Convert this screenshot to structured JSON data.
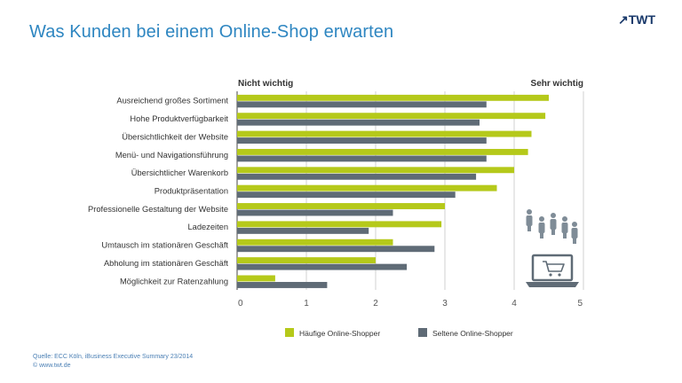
{
  "title": "Was Kunden bei einem Online-Shop erwarten",
  "logo": {
    "arrow": "↗",
    "text": "TWT"
  },
  "footer": {
    "source": "Quelle: ECC Köln, iBusiness Executive Summary 23/2014",
    "copyright": "© www.twt.de"
  },
  "icons": [
    "people-icon",
    "laptop-cart-icon"
  ],
  "chart_data": {
    "type": "bar",
    "orientation": "horizontal",
    "categories": [
      "Ausreichend großes Sortiment",
      "Hohe Produktverfügbarkeit",
      "Übersichtlichkeit der Website",
      "Menü- und Navigationsführung",
      "Übersichtlicher Warenkorb",
      "Produktpräsentation",
      "Professionelle Gestaltung der Website",
      "Ladezeiten",
      "Umtausch im stationären Geschäft",
      "Abholung im stationären Geschäft",
      "Möglichkeit zur Ratenzahlung"
    ],
    "series": [
      {
        "name": "Häufige Online-Shopper",
        "color": "#b5c91a",
        "values": [
          4.5,
          4.45,
          4.25,
          4.2,
          4.0,
          3.75,
          3.0,
          2.95,
          2.25,
          2.0,
          0.55
        ]
      },
      {
        "name": "Seltene Online-Shopper",
        "color": "#5f6b76",
        "values": [
          3.6,
          3.5,
          3.6,
          3.6,
          3.45,
          3.15,
          2.25,
          1.9,
          2.85,
          2.45,
          1.3
        ]
      }
    ],
    "xlim": [
      0,
      5
    ],
    "xticks": [
      0,
      1,
      2,
      3,
      4,
      5
    ],
    "scale_low_label": "Nicht wichtig",
    "scale_high_label": "Sehr wichtig",
    "grid": true,
    "legend_position": "bottom"
  }
}
